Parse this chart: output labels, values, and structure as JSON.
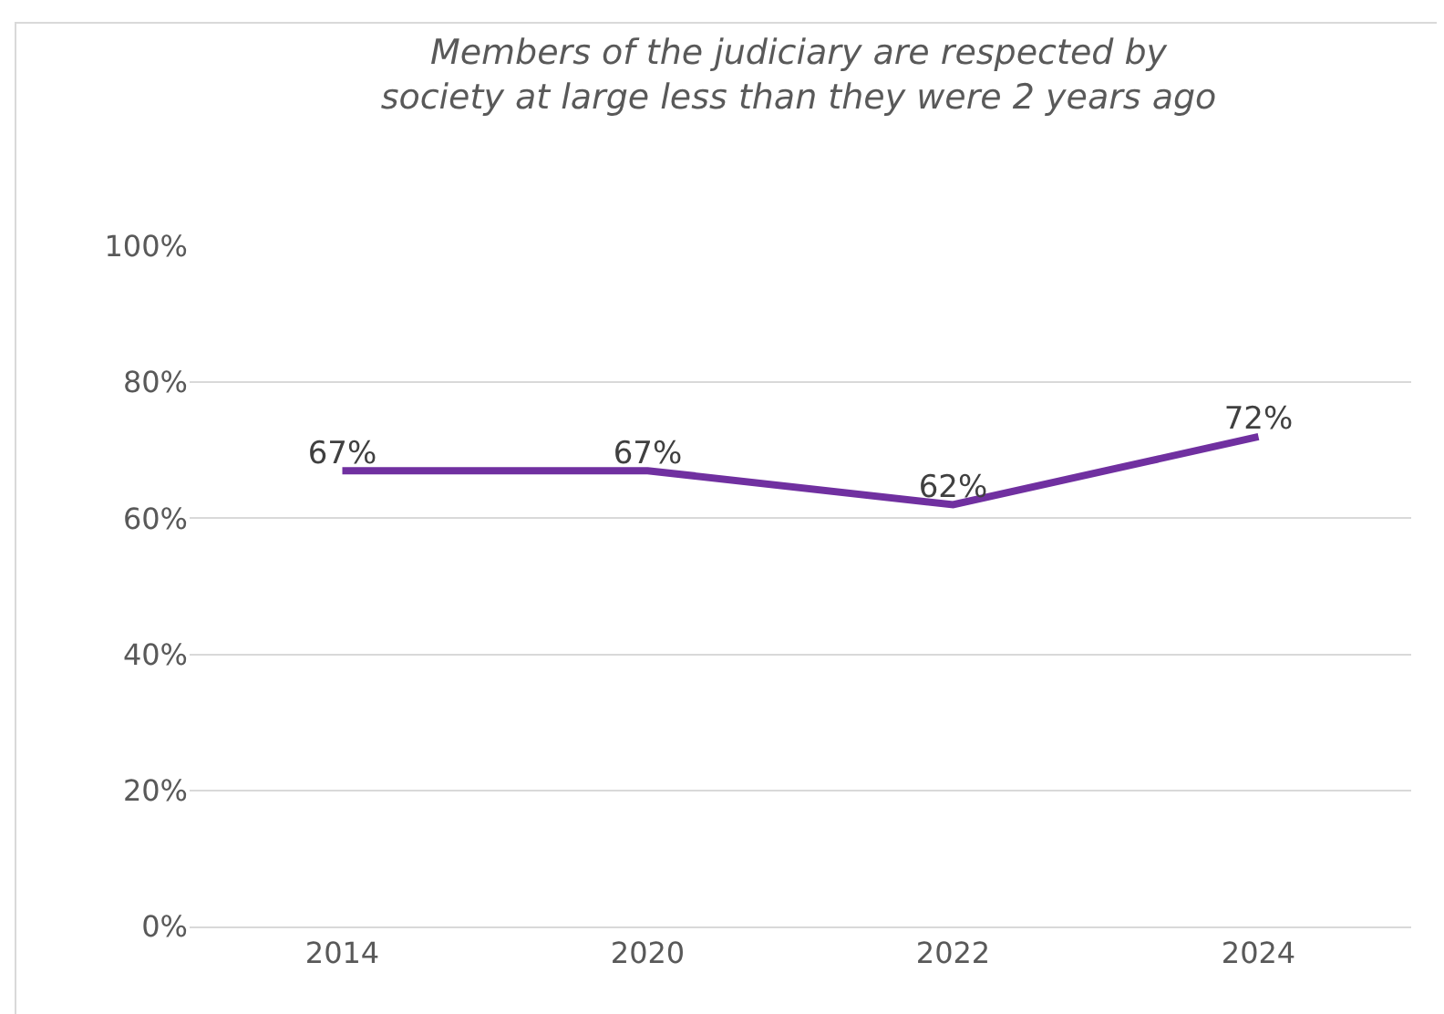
{
  "chart_data": {
    "type": "line",
    "title": "Members of the judiciary are respected by society at large less than they were 2 years ago",
    "categories": [
      "2014",
      "2020",
      "2022",
      "2024"
    ],
    "series": [
      {
        "color": "#7030a0",
        "values": [
          67,
          67,
          62,
          72
        ]
      }
    ],
    "value_labels": [
      "67%",
      "67%",
      "62%",
      "72%"
    ],
    "ylim": [
      0,
      100
    ],
    "yticks": [
      {
        "value": 0,
        "label": "0%"
      },
      {
        "value": 20,
        "label": "20%"
      },
      {
        "value": 40,
        "label": "40%"
      },
      {
        "value": 60,
        "label": "60%"
      },
      {
        "value": 80,
        "label": "80%"
      },
      {
        "value": 100,
        "label": "100%"
      }
    ],
    "grid": "y",
    "marker": "none",
    "line_style": "solid"
  }
}
